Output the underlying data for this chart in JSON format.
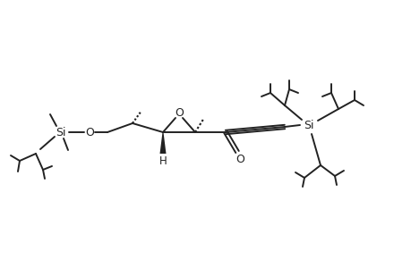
{
  "bg_color": "#ffffff",
  "line_color": "#222222",
  "lw": 1.4,
  "fs": 8.5,
  "figsize": [
    4.6,
    3.0
  ],
  "dpi": 100,
  "xlim": [
    0,
    460
  ],
  "ylim": [
    0,
    300
  ]
}
